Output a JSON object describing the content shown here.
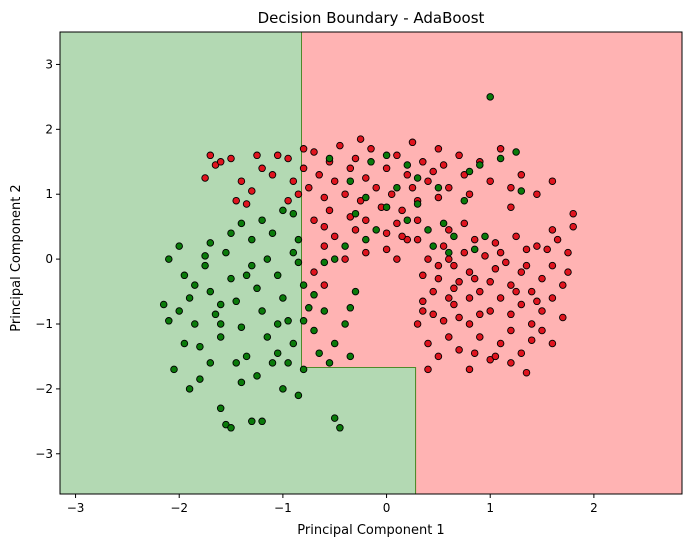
{
  "chart_data": {
    "type": "scatter",
    "title": "Decision Boundary - AdaBoost",
    "xlabel": "Principal Component 1",
    "ylabel": "Principal Component 2",
    "xlim": [
      -3.15,
      2.85
    ],
    "ylim": [
      -3.62,
      3.5
    ],
    "xticks": [
      -3,
      -2,
      -1,
      0,
      1,
      2
    ],
    "yticks": [
      -3,
      -2,
      -1,
      0,
      1,
      2,
      3
    ],
    "grid": false,
    "legend": "none",
    "colors": {
      "region_green": "#b3d9b3",
      "region_red": "#ffb3b3",
      "boundary": "#4f8a2a",
      "point_green": "#0a7a0a",
      "point_red": "#e0141e",
      "point_edge": "#000000"
    },
    "regions": [
      {
        "class": "green",
        "polygon": [
          [
            -3.15,
            3.5
          ],
          [
            -0.82,
            3.5
          ],
          [
            -0.82,
            -1.67
          ],
          [
            0.28,
            -1.67
          ],
          [
            0.28,
            -3.62
          ],
          [
            -3.15,
            -3.62
          ]
        ]
      },
      {
        "class": "red",
        "polygon": [
          [
            -0.82,
            3.5
          ],
          [
            2.85,
            3.5
          ],
          [
            2.85,
            -3.62
          ],
          [
            0.28,
            -3.62
          ],
          [
            0.28,
            -1.67
          ],
          [
            -0.82,
            -1.67
          ]
        ]
      }
    ],
    "series": [
      {
        "class": "red",
        "points": [
          [
            -1.7,
            1.6
          ],
          [
            -1.65,
            1.45
          ],
          [
            -1.6,
            1.5
          ],
          [
            -1.75,
            1.25
          ],
          [
            -1.5,
            1.55
          ],
          [
            -1.4,
            1.2
          ],
          [
            -1.3,
            1.05
          ],
          [
            -1.35,
            0.85
          ],
          [
            -1.2,
            1.4
          ],
          [
            -1.1,
            1.3
          ],
          [
            -1.05,
            1.6
          ],
          [
            -0.95,
            1.55
          ],
          [
            -0.9,
            1.2
          ],
          [
            -0.85,
            1.0
          ],
          [
            -0.8,
            1.4
          ],
          [
            -0.75,
            1.1
          ],
          [
            -0.7,
            1.65
          ],
          [
            -0.65,
            1.3
          ],
          [
            -0.6,
            0.95
          ],
          [
            -0.55,
            1.5
          ],
          [
            -0.5,
            1.2
          ],
          [
            -0.45,
            1.75
          ],
          [
            -0.4,
            1.0
          ],
          [
            -0.35,
            1.4
          ],
          [
            -0.3,
            1.55
          ],
          [
            -0.25,
            0.9
          ],
          [
            -0.2,
            1.25
          ],
          [
            -0.15,
            1.7
          ],
          [
            -0.1,
            1.1
          ],
          [
            -0.05,
            0.8
          ],
          [
            0.0,
            1.4
          ],
          [
            0.05,
            1.0
          ],
          [
            0.1,
            1.6
          ],
          [
            0.15,
            0.75
          ],
          [
            0.2,
            1.3
          ],
          [
            0.25,
            1.1
          ],
          [
            0.3,
            0.9
          ],
          [
            0.35,
            1.5
          ],
          [
            0.4,
            1.2
          ],
          [
            0.45,
            1.35
          ],
          [
            0.5,
            0.95
          ],
          [
            0.55,
            1.45
          ],
          [
            0.6,
            1.1
          ],
          [
            0.7,
            1.6
          ],
          [
            0.75,
            1.3
          ],
          [
            0.8,
            1.0
          ],
          [
            0.9,
            1.5
          ],
          [
            1.0,
            1.2
          ],
          [
            1.1,
            1.7
          ],
          [
            1.2,
            1.1
          ],
          [
            1.3,
            1.3
          ],
          [
            1.45,
            1.0
          ],
          [
            1.6,
            1.2
          ],
          [
            1.8,
            0.7
          ],
          [
            -0.7,
            0.6
          ],
          [
            -0.6,
            0.5
          ],
          [
            -0.3,
            0.45
          ],
          [
            -0.2,
            0.6
          ],
          [
            0.0,
            0.4
          ],
          [
            0.1,
            0.55
          ],
          [
            0.2,
            0.3
          ],
          [
            0.3,
            0.6
          ],
          [
            -0.6,
            0.2
          ],
          [
            -0.5,
            0.35
          ],
          [
            -0.2,
            0.1
          ],
          [
            0.0,
            0.15
          ],
          [
            0.1,
            0.0
          ],
          [
            -0.4,
            0.0
          ],
          [
            -0.7,
            -0.2
          ],
          [
            -0.6,
            -0.4
          ],
          [
            0.3,
            0.3
          ],
          [
            0.4,
            0.0
          ],
          [
            0.5,
            -0.3
          ],
          [
            0.6,
            -0.6
          ],
          [
            0.7,
            -0.9
          ],
          [
            0.8,
            -0.2
          ],
          [
            0.9,
            -0.5
          ],
          [
            1.0,
            -0.8
          ],
          [
            1.1,
            0.1
          ],
          [
            1.2,
            -0.4
          ],
          [
            1.3,
            -0.7
          ],
          [
            1.4,
            -1.0
          ],
          [
            1.5,
            -0.3
          ],
          [
            1.6,
            -0.6
          ],
          [
            1.7,
            -0.9
          ],
          [
            1.75,
            -0.2
          ],
          [
            1.8,
            0.5
          ],
          [
            1.65,
            0.3
          ],
          [
            1.55,
            0.15
          ],
          [
            1.45,
            0.2
          ],
          [
            1.35,
            -0.1
          ],
          [
            1.25,
            0.35
          ],
          [
            1.15,
            -0.05
          ],
          [
            1.05,
            0.25
          ],
          [
            0.95,
            0.05
          ],
          [
            0.85,
            0.3
          ],
          [
            0.75,
            0.1
          ],
          [
            0.65,
            -0.1
          ],
          [
            0.55,
            0.2
          ],
          [
            0.45,
            -0.5
          ],
          [
            0.35,
            -0.8
          ],
          [
            0.3,
            -1.0
          ],
          [
            0.4,
            -1.3
          ],
          [
            0.5,
            -1.5
          ],
          [
            0.6,
            -1.2
          ],
          [
            0.7,
            -1.4
          ],
          [
            0.8,
            -1.0
          ],
          [
            0.9,
            -1.2
          ],
          [
            1.0,
            -1.55
          ],
          [
            1.1,
            -1.3
          ],
          [
            1.2,
            -1.1
          ],
          [
            1.3,
            -1.45
          ],
          [
            1.4,
            -1.25
          ],
          [
            1.5,
            -1.1
          ],
          [
            1.35,
            -1.75
          ],
          [
            1.2,
            -1.6
          ],
          [
            1.05,
            -1.5
          ],
          [
            0.85,
            -1.45
          ],
          [
            0.65,
            -0.7
          ],
          [
            0.55,
            -0.95
          ],
          [
            0.45,
            -0.85
          ],
          [
            0.35,
            -0.65
          ],
          [
            0.5,
            -0.1
          ],
          [
            0.6,
            0.0
          ],
          [
            0.7,
            -0.35
          ],
          [
            0.8,
            -0.6
          ],
          [
            0.9,
            -0.85
          ],
          [
            1.0,
            -0.35
          ],
          [
            1.1,
            -0.6
          ],
          [
            1.2,
            -0.85
          ],
          [
            1.3,
            -0.2
          ],
          [
            1.4,
            -0.5
          ],
          [
            1.5,
            -0.8
          ],
          [
            1.6,
            -0.1
          ],
          [
            1.7,
            -0.4
          ],
          [
            1.45,
            -0.65
          ],
          [
            1.25,
            -0.5
          ],
          [
            1.05,
            -0.15
          ],
          [
            0.85,
            -0.3
          ],
          [
            0.65,
            -0.45
          ],
          [
            0.25,
            1.8
          ],
          [
            -0.25,
            1.85
          ],
          [
            0.5,
            1.7
          ],
          [
            -0.8,
            1.7
          ],
          [
            -0.95,
            0.9
          ],
          [
            -1.25,
            1.6
          ],
          [
            -1.45,
            0.9
          ],
          [
            -0.55,
            0.75
          ],
          [
            -0.35,
            0.65
          ],
          [
            0.15,
            0.35
          ],
          [
            0.6,
            0.45
          ],
          [
            0.75,
            0.55
          ],
          [
            1.2,
            0.8
          ],
          [
            1.35,
            0.15
          ],
          [
            1.6,
            0.45
          ],
          [
            1.75,
            0.1
          ],
          [
            0.35,
            -0.25
          ],
          [
            0.4,
            -1.7
          ],
          [
            0.8,
            -1.7
          ],
          [
            1.6,
            -1.3
          ]
        ]
      },
      {
        "class": "green",
        "points": [
          [
            -2.15,
            -0.7
          ],
          [
            -2.1,
            -0.95
          ],
          [
            -2.05,
            -1.7
          ],
          [
            -2.0,
            0.2
          ],
          [
            -1.95,
            -0.25
          ],
          [
            -1.9,
            -0.6
          ],
          [
            -1.85,
            -1.0
          ],
          [
            -1.8,
            -1.35
          ],
          [
            -1.75,
            -0.1
          ],
          [
            -1.7,
            -0.5
          ],
          [
            -1.65,
            -0.85
          ],
          [
            -1.6,
            -1.2
          ],
          [
            -1.55,
            0.1
          ],
          [
            -1.5,
            -0.3
          ],
          [
            -1.45,
            -0.65
          ],
          [
            -1.4,
            -1.05
          ],
          [
            -1.35,
            -1.5
          ],
          [
            -1.3,
            -0.1
          ],
          [
            -1.25,
            -0.45
          ],
          [
            -1.2,
            -0.8
          ],
          [
            -1.15,
            -1.2
          ],
          [
            -1.1,
            -1.6
          ],
          [
            -1.05,
            -0.25
          ],
          [
            -1.0,
            -0.6
          ],
          [
            -0.95,
            -0.95
          ],
          [
            -0.9,
            -1.3
          ],
          [
            -0.85,
            -0.05
          ],
          [
            -0.8,
            -0.4
          ],
          [
            -0.75,
            -0.75
          ],
          [
            -0.7,
            -1.1
          ],
          [
            -1.9,
            -2.0
          ],
          [
            -1.8,
            -1.85
          ],
          [
            -1.6,
            -2.3
          ],
          [
            -1.55,
            -2.55
          ],
          [
            -1.5,
            -2.6
          ],
          [
            -1.4,
            -1.9
          ],
          [
            -1.3,
            -2.5
          ],
          [
            -1.2,
            -2.5
          ],
          [
            -1.0,
            -2.0
          ],
          [
            -0.85,
            -2.1
          ],
          [
            -0.5,
            -2.45
          ],
          [
            -0.45,
            -2.6
          ],
          [
            -0.55,
            -1.6
          ],
          [
            -0.5,
            -1.3
          ],
          [
            -0.4,
            -1.0
          ],
          [
            -0.6,
            -0.8
          ],
          [
            -1.75,
            0.05
          ],
          [
            -1.6,
            -0.7
          ],
          [
            -1.5,
            0.4
          ],
          [
            -1.4,
            0.55
          ],
          [
            -1.3,
            0.3
          ],
          [
            -1.2,
            0.6
          ],
          [
            -1.1,
            0.4
          ],
          [
            -1.0,
            0.75
          ],
          [
            -0.9,
            0.7
          ],
          [
            -0.85,
            0.3
          ],
          [
            -0.6,
            -0.05
          ],
          [
            -0.5,
            0.0
          ],
          [
            -0.4,
            0.2
          ],
          [
            -0.3,
            0.7
          ],
          [
            -0.2,
            0.95
          ],
          [
            -0.1,
            0.45
          ],
          [
            0.0,
            0.8
          ],
          [
            0.1,
            1.1
          ],
          [
            0.2,
            0.6
          ],
          [
            0.3,
            0.85
          ],
          [
            0.4,
            0.45
          ],
          [
            0.45,
            0.2
          ],
          [
            0.55,
            0.55
          ],
          [
            0.65,
            0.35
          ],
          [
            0.75,
            0.9
          ],
          [
            0.85,
            0.15
          ],
          [
            -0.15,
            1.5
          ],
          [
            0.0,
            1.6
          ],
          [
            0.2,
            1.45
          ],
          [
            0.3,
            1.25
          ],
          [
            -0.55,
            1.55
          ],
          [
            -0.35,
            1.2
          ],
          [
            0.5,
            1.1
          ],
          [
            0.8,
            1.35
          ],
          [
            0.9,
            1.45
          ],
          [
            1.1,
            1.55
          ],
          [
            1.25,
            1.65
          ],
          [
            1.3,
            1.05
          ],
          [
            0.6,
            0.1
          ],
          [
            0.95,
            0.35
          ],
          [
            1.0,
            2.5
          ],
          [
            -2.1,
            0.0
          ],
          [
            -1.95,
            -1.3
          ],
          [
            -1.7,
            -1.6
          ],
          [
            -1.35,
            -0.25
          ],
          [
            -1.05,
            -1.0
          ],
          [
            -0.95,
            -1.6
          ],
          [
            -0.8,
            -1.7
          ],
          [
            -0.35,
            -1.5
          ],
          [
            -0.65,
            -1.45
          ],
          [
            -0.3,
            -0.5
          ],
          [
            -0.35,
            -0.75
          ],
          [
            -0.8,
            -0.95
          ],
          [
            -0.9,
            0.1
          ],
          [
            -1.15,
            0.0
          ],
          [
            -1.25,
            -1.8
          ],
          [
            -1.45,
            -1.6
          ],
          [
            -1.6,
            -1.0
          ],
          [
            -1.85,
            -0.4
          ],
          [
            -2.0,
            -0.8
          ],
          [
            -1.7,
            0.25
          ],
          [
            -1.05,
            -1.45
          ],
          [
            -0.7,
            -0.55
          ],
          [
            -0.2,
            0.3
          ]
        ]
      }
    ]
  }
}
